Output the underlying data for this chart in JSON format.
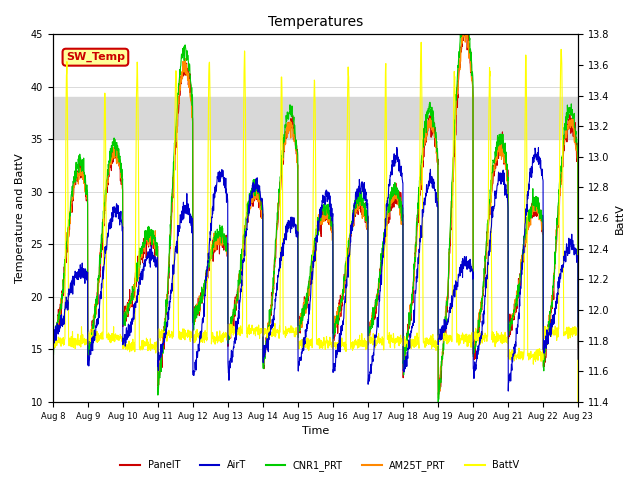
{
  "title": "Temperatures",
  "ylabel_left": "Temperature and BattV",
  "ylabel_right": "BattV",
  "xlabel": "Time",
  "ylim_left": [
    10,
    45
  ],
  "ylim_right": [
    11.4,
    13.8
  ],
  "shade_band": [
    35.0,
    39.0
  ],
  "shade_color": "#d8d8d8",
  "x_tick_labels": [
    "Aug 8",
    "Aug 9",
    "Aug 10",
    "Aug 11",
    "Aug 12",
    "Aug 13",
    "Aug 14",
    "Aug 15",
    "Aug 16",
    "Aug 17",
    "Aug 18",
    "Aug 19",
    "Aug 20",
    "Aug 21",
    "Aug 22",
    "Aug 23"
  ],
  "series_colors": {
    "PanelT": "#cc0000",
    "AirT": "#0000cc",
    "CNR1_PRT": "#00cc00",
    "AM25T_PRT": "#ff8800",
    "BattV": "#ffff00"
  },
  "legend_box_text": "SW_Temp",
  "legend_box_text_color": "#cc0000",
  "legend_box_bg": "#ffff99",
  "n_days": 15,
  "background_color": "#ffffff",
  "grid_color": "#cccccc",
  "figsize": [
    6.4,
    4.8
  ],
  "dpi": 100
}
